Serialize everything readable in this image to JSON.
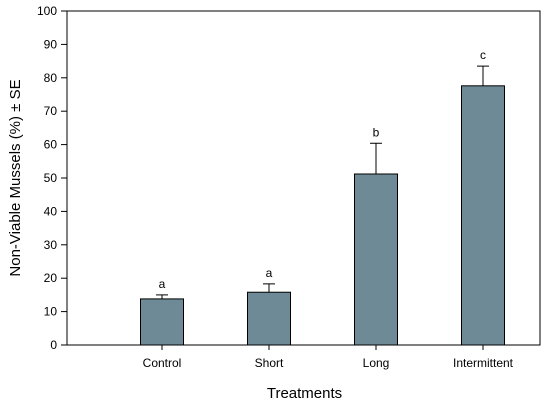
{
  "chart_data": {
    "type": "bar",
    "title": "",
    "xlabel": "Treatments",
    "ylabel": "Non-Viable Mussels (%) ± SE",
    "ylim": [
      0,
      100
    ],
    "yticks": [
      0,
      10,
      20,
      30,
      40,
      50,
      60,
      70,
      80,
      90,
      100
    ],
    "categories": [
      "Control",
      "Short",
      "Long",
      "Intermittent"
    ],
    "values": [
      13.8,
      15.8,
      51.2,
      77.6
    ],
    "errors": [
      1.2,
      2.5,
      9.2,
      5.9
    ],
    "significance_letters": [
      "a",
      "a",
      "b",
      "c"
    ],
    "bar_color": "#6e8a97",
    "error_bar_direction": "upper",
    "grid": false,
    "legend": "none"
  }
}
